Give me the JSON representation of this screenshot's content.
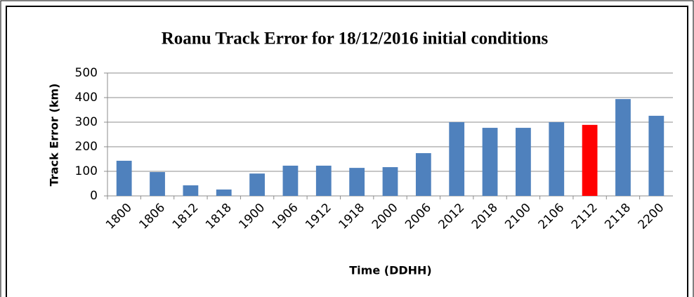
{
  "chart_data": {
    "type": "bar",
    "title": "Roanu Track Error for 18/12/2016 initial conditions",
    "x_label": "Time (DDHH)",
    "y_label": "Track Error (km)",
    "categories": [
      "1800",
      "1806",
      "1812",
      "1818",
      "1900",
      "1906",
      "1912",
      "1918",
      "2000",
      "2006",
      "2012",
      "2018",
      "2100",
      "2106",
      "2112",
      "2118",
      "2200"
    ],
    "values": [
      143,
      97,
      43,
      26,
      91,
      123,
      123,
      114,
      117,
      174,
      300,
      277,
      277,
      300,
      289,
      394,
      326
    ],
    "colors": [
      "#4f81bd",
      "#4f81bd",
      "#4f81bd",
      "#4f81bd",
      "#4f81bd",
      "#4f81bd",
      "#4f81bd",
      "#4f81bd",
      "#4f81bd",
      "#4f81bd",
      "#4f81bd",
      "#4f81bd",
      "#4f81bd",
      "#4f81bd",
      "#ff0000",
      "#4f81bd",
      "#4f81bd"
    ],
    "ylim": [
      0,
      500
    ],
    "yticks": [
      0,
      100,
      200,
      300,
      400,
      500
    ],
    "grid": true
  }
}
